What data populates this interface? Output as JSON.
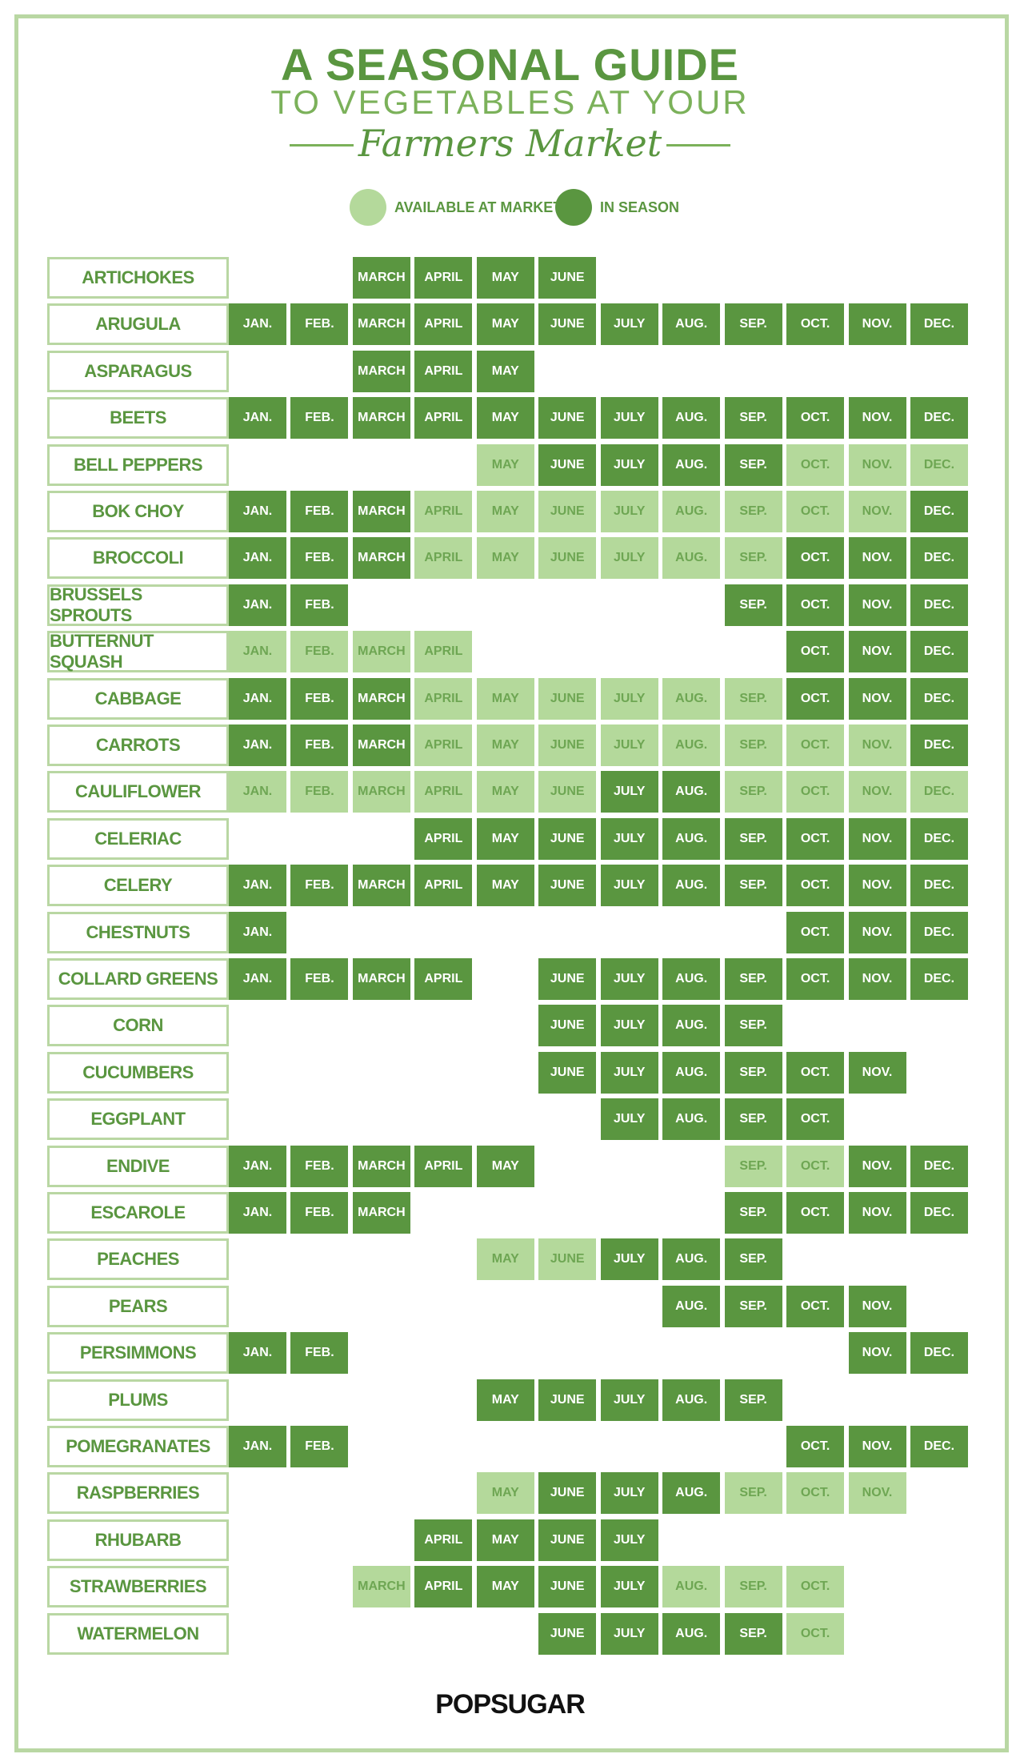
{
  "header": {
    "title": "A SEASONAL GUIDE",
    "subtitle": "TO VEGETABLES AT YOUR",
    "script": "Farmers Market"
  },
  "legend": [
    {
      "key": "market",
      "label": "AVAILABLE AT MARKET",
      "color": "#b4d99b"
    },
    {
      "key": "season",
      "label": "IN SEASON",
      "color": "#5a9640"
    }
  ],
  "months": [
    "JAN.",
    "FEB.",
    "MARCH",
    "APRIL",
    "MAY",
    "JUNE",
    "JULY",
    "AUG.",
    "SEP.",
    "OCT.",
    "NOV.",
    "DEC."
  ],
  "rows": [
    {
      "name": "ARTICHOKES",
      "cells": [
        null,
        null,
        "season",
        "season",
        "season",
        "season",
        null,
        null,
        null,
        null,
        null,
        null
      ]
    },
    {
      "name": "ARUGULA",
      "cells": [
        "season",
        "season",
        "season",
        "season",
        "season",
        "season",
        "season",
        "season",
        "season",
        "season",
        "season",
        "season"
      ]
    },
    {
      "name": "ASPARAGUS",
      "cells": [
        null,
        null,
        "season",
        "season",
        "season",
        null,
        null,
        null,
        null,
        null,
        null,
        null
      ]
    },
    {
      "name": "BEETS",
      "cells": [
        "season",
        "season",
        "season",
        "season",
        "season",
        "season",
        "season",
        "season",
        "season",
        "season",
        "season",
        "season"
      ]
    },
    {
      "name": "BELL PEPPERS",
      "cells": [
        null,
        null,
        null,
        null,
        "market",
        "season",
        "season",
        "season",
        "season",
        "market",
        "market",
        "market"
      ]
    },
    {
      "name": "BOK CHOY",
      "cells": [
        "season",
        "season",
        "season",
        "market",
        "market",
        "market",
        "market",
        "market",
        "market",
        "market",
        "market",
        "season"
      ]
    },
    {
      "name": "BROCCOLI",
      "cells": [
        "season",
        "season",
        "season",
        "market",
        "market",
        "market",
        "market",
        "market",
        "market",
        "season",
        "season",
        "season"
      ]
    },
    {
      "name": "BRUSSELS SPROUTS",
      "cells": [
        "season",
        "season",
        null,
        null,
        null,
        null,
        null,
        null,
        "season",
        "season",
        "season",
        "season"
      ]
    },
    {
      "name": "BUTTERNUT SQUASH",
      "cells": [
        "market",
        "market",
        "market",
        "market",
        null,
        null,
        null,
        null,
        null,
        "season",
        "season",
        "season"
      ]
    },
    {
      "name": "CABBAGE",
      "cells": [
        "season",
        "season",
        "season",
        "market",
        "market",
        "market",
        "market",
        "market",
        "market",
        "season",
        "season",
        "season"
      ]
    },
    {
      "name": "CARROTS",
      "cells": [
        "season",
        "season",
        "season",
        "market",
        "market",
        "market",
        "market",
        "market",
        "market",
        "market",
        "market",
        "season"
      ]
    },
    {
      "name": "CAULIFLOWER",
      "cells": [
        "market",
        "market",
        "market",
        "market",
        "market",
        "market",
        "season",
        "season",
        "market",
        "market",
        "market",
        "market"
      ]
    },
    {
      "name": "CELERIAC",
      "cells": [
        null,
        null,
        null,
        "season",
        "season",
        "season",
        "season",
        "season",
        "season",
        "season",
        "season",
        "season"
      ]
    },
    {
      "name": "CELERY",
      "cells": [
        "season",
        "season",
        "season",
        "season",
        "season",
        "season",
        "season",
        "season",
        "season",
        "season",
        "season",
        "season"
      ]
    },
    {
      "name": "CHESTNUTS",
      "cells": [
        "season",
        null,
        null,
        null,
        null,
        null,
        null,
        null,
        null,
        "season",
        "season",
        "season"
      ]
    },
    {
      "name": "COLLARD GREENS",
      "cells": [
        "season",
        "season",
        "season",
        "season",
        null,
        "season",
        "season",
        "season",
        "season",
        "season",
        "season",
        "season"
      ]
    },
    {
      "name": "CORN",
      "cells": [
        null,
        null,
        null,
        null,
        null,
        "season",
        "season",
        "season",
        "season",
        null,
        null,
        null
      ]
    },
    {
      "name": "CUCUMBERS",
      "cells": [
        null,
        null,
        null,
        null,
        null,
        "season",
        "season",
        "season",
        "season",
        "season",
        "season",
        null
      ]
    },
    {
      "name": "EGGPLANT",
      "cells": [
        null,
        null,
        null,
        null,
        null,
        null,
        "season",
        "season",
        "season",
        "season",
        null,
        null
      ]
    },
    {
      "name": "ENDIVE",
      "cells": [
        "season",
        "season",
        "season",
        "season",
        "season",
        null,
        null,
        null,
        "market",
        "market",
        "season",
        "season"
      ]
    },
    {
      "name": "ESCAROLE",
      "cells": [
        "season",
        "season",
        "season",
        null,
        null,
        null,
        null,
        null,
        "season",
        "season",
        "season",
        "season"
      ]
    },
    {
      "name": "PEACHES",
      "cells": [
        null,
        null,
        null,
        null,
        "market",
        "market",
        "season",
        "season",
        "season",
        null,
        null,
        null
      ]
    },
    {
      "name": "PEARS",
      "cells": [
        null,
        null,
        null,
        null,
        null,
        null,
        null,
        "season",
        "season",
        "season",
        "season",
        null
      ]
    },
    {
      "name": "PERSIMMONS",
      "cells": [
        "season",
        "season",
        null,
        null,
        null,
        null,
        null,
        null,
        null,
        null,
        "season",
        "season"
      ]
    },
    {
      "name": "PLUMS",
      "cells": [
        null,
        null,
        null,
        null,
        "season",
        "season",
        "season",
        "season",
        "season",
        null,
        null,
        null
      ]
    },
    {
      "name": "POMEGRANATES",
      "cells": [
        "season",
        "season",
        null,
        null,
        null,
        null,
        null,
        null,
        null,
        "season",
        "season",
        "season"
      ]
    },
    {
      "name": "RASPBERRIES",
      "cells": [
        null,
        null,
        null,
        null,
        "market",
        "season",
        "season",
        "season",
        "market",
        "market",
        "market",
        null
      ]
    },
    {
      "name": "RHUBARB",
      "cells": [
        null,
        null,
        null,
        "season",
        "season",
        "season",
        "season",
        null,
        null,
        null,
        null,
        null
      ]
    },
    {
      "name": "STRAWBERRIES",
      "cells": [
        null,
        null,
        "market",
        "season",
        "season",
        "season",
        "season",
        "market",
        "market",
        "market",
        null,
        null
      ]
    },
    {
      "name": "WATERMELON",
      "cells": [
        null,
        null,
        null,
        null,
        null,
        "season",
        "season",
        "season",
        "season",
        "market",
        null,
        null
      ]
    }
  ],
  "footer": {
    "brand": "POPSUGAR"
  }
}
